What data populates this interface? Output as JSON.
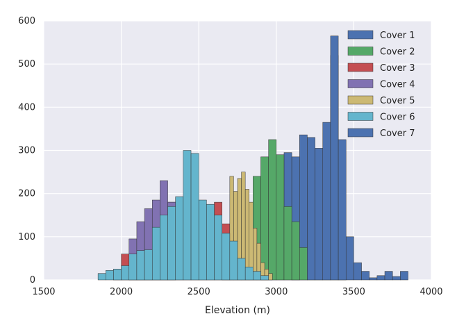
{
  "chart_data": {
    "type": "bar",
    "title": "",
    "xlabel": "Elevation (m)",
    "ylabel": "",
    "xlim": [
      1500,
      4000
    ],
    "ylim": [
      0,
      600
    ],
    "xticks": [
      1500,
      2000,
      2500,
      3000,
      3500,
      4000
    ],
    "yticks": [
      0,
      100,
      200,
      300,
      400,
      500,
      600
    ],
    "grid": true,
    "legend_position": "top-right",
    "series": [
      {
        "name": "Cover 1",
        "color": "#4c72b0",
        "bins": [
          [
            3000,
            3050,
            10
          ],
          [
            3050,
            3100,
            295
          ],
          [
            3100,
            3150,
            285
          ],
          [
            3150,
            3200,
            336
          ],
          [
            3200,
            3250,
            330
          ],
          [
            3250,
            3300,
            305
          ],
          [
            3300,
            3350,
            365
          ],
          [
            3350,
            3400,
            565
          ],
          [
            3400,
            3450,
            325
          ],
          [
            3450,
            3500,
            100
          ],
          [
            3500,
            3550,
            40
          ],
          [
            3550,
            3600,
            20
          ],
          [
            3600,
            3650,
            5
          ],
          [
            3650,
            3700,
            10
          ],
          [
            3700,
            3750,
            20
          ],
          [
            3750,
            3800,
            8
          ],
          [
            3800,
            3850,
            20
          ]
        ]
      },
      {
        "name": "Cover 2",
        "color": "#55a868",
        "bins": [
          [
            2650,
            2700,
            100
          ],
          [
            2700,
            2750,
            120
          ],
          [
            2750,
            2800,
            120
          ],
          [
            2800,
            2850,
            130
          ],
          [
            2850,
            2900,
            240
          ],
          [
            2900,
            2950,
            285
          ],
          [
            2950,
            3000,
            325
          ],
          [
            3000,
            3050,
            290
          ],
          [
            3050,
            3100,
            170
          ],
          [
            3100,
            3150,
            135
          ],
          [
            3150,
            3200,
            75
          ]
        ]
      },
      {
        "name": "Cover 3",
        "color": "#c44e52",
        "bins": [
          [
            1950,
            2000,
            25
          ],
          [
            2000,
            2050,
            60
          ],
          [
            2050,
            2100,
            30
          ],
          [
            2100,
            2150,
            40
          ],
          [
            2150,
            2200,
            90
          ],
          [
            2200,
            2250,
            140
          ],
          [
            2250,
            2300,
            170
          ],
          [
            2300,
            2350,
            180
          ],
          [
            2350,
            2400,
            190
          ],
          [
            2400,
            2450,
            185
          ],
          [
            2450,
            2500,
            170
          ],
          [
            2500,
            2550,
            165
          ],
          [
            2550,
            2600,
            175
          ],
          [
            2600,
            2650,
            180
          ],
          [
            2650,
            2700,
            130
          ]
        ]
      },
      {
        "name": "Cover 4",
        "color": "#8172b2",
        "bins": [
          [
            2050,
            2100,
            95
          ],
          [
            2100,
            2150,
            135
          ],
          [
            2150,
            2200,
            165
          ],
          [
            2200,
            2250,
            185
          ],
          [
            2250,
            2300,
            230
          ],
          [
            2300,
            2350,
            180
          ]
        ]
      },
      {
        "name": "Cover 5",
        "color": "#ccb974",
        "bins": [
          [
            2700,
            2725,
            240
          ],
          [
            2725,
            2750,
            205
          ],
          [
            2750,
            2775,
            235
          ],
          [
            2775,
            2800,
            250
          ],
          [
            2800,
            2825,
            210
          ],
          [
            2825,
            2850,
            180
          ],
          [
            2850,
            2875,
            120
          ],
          [
            2875,
            2900,
            85
          ],
          [
            2900,
            2925,
            40
          ],
          [
            2925,
            2950,
            25
          ],
          [
            2950,
            2975,
            15
          ]
        ]
      },
      {
        "name": "Cover 6",
        "color": "#64b5cd",
        "bins": [
          [
            1850,
            1900,
            15
          ],
          [
            1900,
            1950,
            22
          ],
          [
            1950,
            2000,
            25
          ],
          [
            2000,
            2050,
            33
          ],
          [
            2050,
            2100,
            60
          ],
          [
            2100,
            2150,
            68
          ],
          [
            2150,
            2200,
            70
          ],
          [
            2200,
            2250,
            122
          ],
          [
            2250,
            2300,
            150
          ],
          [
            2300,
            2350,
            170
          ],
          [
            2350,
            2400,
            193
          ],
          [
            2400,
            2450,
            300
          ],
          [
            2450,
            2500,
            293
          ],
          [
            2500,
            2550,
            185
          ],
          [
            2550,
            2600,
            175
          ],
          [
            2600,
            2650,
            150
          ],
          [
            2650,
            2700,
            108
          ],
          [
            2700,
            2750,
            90
          ],
          [
            2750,
            2800,
            50
          ],
          [
            2800,
            2850,
            30
          ],
          [
            2850,
            2900,
            20
          ],
          [
            2900,
            2950,
            10
          ]
        ]
      },
      {
        "name": "Cover 7",
        "color": "#4c72b0",
        "bins": [
          [
            2900,
            3000,
            5
          ],
          [
            3100,
            3150,
            22
          ],
          [
            3200,
            3250,
            220
          ],
          [
            3250,
            3300,
            260
          ],
          [
            3300,
            3350,
            340
          ],
          [
            3350,
            3400,
            520
          ],
          [
            3400,
            3450,
            280
          ]
        ]
      }
    ],
    "draw_order": [
      "Cover 7",
      "Cover 1",
      "Cover 2",
      "Cover 3",
      "Cover 4",
      "Cover 5",
      "Cover 6"
    ]
  }
}
